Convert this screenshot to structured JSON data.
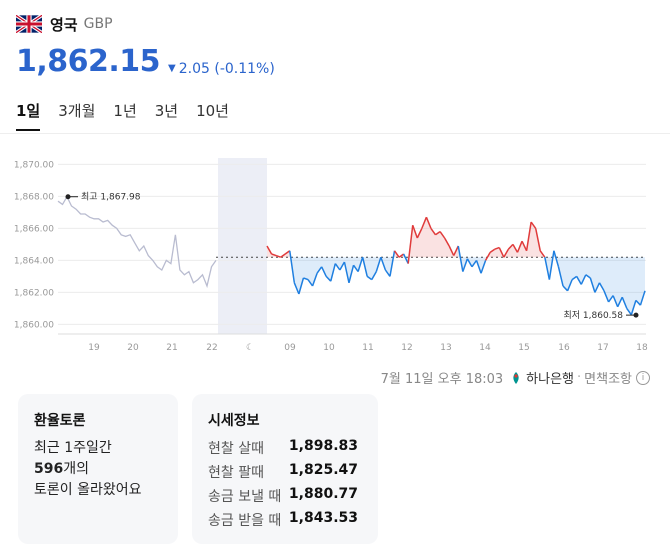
{
  "header": {
    "country": "영국",
    "code": "GBP"
  },
  "price": {
    "value": "1,862.15",
    "change": "2.05 (-0.11%)",
    "direction": "down"
  },
  "tabs": [
    {
      "label": "1일",
      "active": true
    },
    {
      "label": "3개월"
    },
    {
      "label": "1년"
    },
    {
      "label": "3년"
    },
    {
      "label": "10년"
    }
  ],
  "meta": {
    "timestamp": "7월 11일 오후 18:03",
    "bank": "하나은행",
    "disclaimer": "면책조항",
    "info_icon": "info-icon"
  },
  "forum": {
    "title": "환율토론",
    "line1": "최근 1주일간",
    "count": "596",
    "line2_suffix": "개의",
    "line3": "토론이 올라왔어요"
  },
  "rates": {
    "title": "시세정보",
    "rows": [
      {
        "label": "현찰 살때",
        "value": "1,898.83"
      },
      {
        "label": "현찰 팔때",
        "value": "1,825.47"
      },
      {
        "label": "송금 보낼 때",
        "value": "1,880.77"
      },
      {
        "label": "송금 받을 때",
        "value": "1,843.53"
      }
    ]
  },
  "colors": {
    "accent": "#2b64cc",
    "up": "#e03b3b",
    "down": "#1f7fe0",
    "pre": "#b9bcd0"
  },
  "chart_data": {
    "type": "line",
    "ylim": [
      1859.4,
      1870.4
    ],
    "yticks": [
      "1,870.00",
      "1,868.00",
      "1,866.00",
      "1,864.00",
      "1,862.00",
      "1,860.00"
    ],
    "ytick_values": [
      1870,
      1868,
      1866,
      1864,
      1862,
      1860
    ],
    "xticks": [
      "19",
      "20",
      "21",
      "22",
      "☾",
      "09",
      "10",
      "11",
      "12",
      "13",
      "14",
      "15",
      "16",
      "17",
      "18"
    ],
    "reference": 1864.2,
    "high_label": "최고 1,867.98",
    "high_value": 1867.98,
    "low_label": "최저 1,860.58",
    "low_value": 1860.58,
    "pre_series": [
      1867.7,
      1867.5,
      1867.98,
      1867.4,
      1867.2,
      1866.9,
      1866.9,
      1866.7,
      1866.6,
      1866.6,
      1866.4,
      1866.5,
      1866.2,
      1866.0,
      1865.6,
      1865.5,
      1865.6,
      1865.1,
      1864.6,
      1864.9,
      1864.3,
      1864.0,
      1863.6,
      1863.4,
      1864.0,
      1863.8,
      1865.6,
      1863.4,
      1863.1,
      1863.3,
      1862.6,
      1862.8,
      1863.1,
      1862.4,
      1863.6,
      1864.0
    ],
    "main_series": [
      1864.9,
      1864.4,
      1864.3,
      1864.2,
      1864.4,
      1864.6,
      1862.6,
      1861.9,
      1862.9,
      1862.8,
      1862.4,
      1863.2,
      1863.6,
      1863.0,
      1862.7,
      1863.8,
      1863.4,
      1863.9,
      1862.6,
      1863.7,
      1863.3,
      1864.2,
      1863.0,
      1862.8,
      1863.3,
      1864.2,
      1863.4,
      1863.0,
      1864.6,
      1864.2,
      1864.4,
      1863.8,
      1866.2,
      1865.4,
      1866.0,
      1866.7,
      1866.0,
      1865.6,
      1865.8,
      1865.4,
      1864.9,
      1864.3,
      1864.9,
      1863.3,
      1864.1,
      1863.6,
      1864.0,
      1863.2,
      1864.0,
      1864.5,
      1864.7,
      1864.8,
      1864.2,
      1864.7,
      1865.0,
      1864.5,
      1865.2,
      1864.6,
      1866.4,
      1866.0,
      1864.6,
      1864.2,
      1862.8,
      1864.6,
      1863.6,
      1862.4,
      1862.1,
      1862.8,
      1863.0,
      1862.5,
      1863.1,
      1862.9,
      1862.0,
      1862.6,
      1862.1,
      1861.4,
      1861.8,
      1861.1,
      1861.7,
      1861.0,
      1860.6,
      1861.5,
      1861.2,
      1862.1
    ]
  }
}
